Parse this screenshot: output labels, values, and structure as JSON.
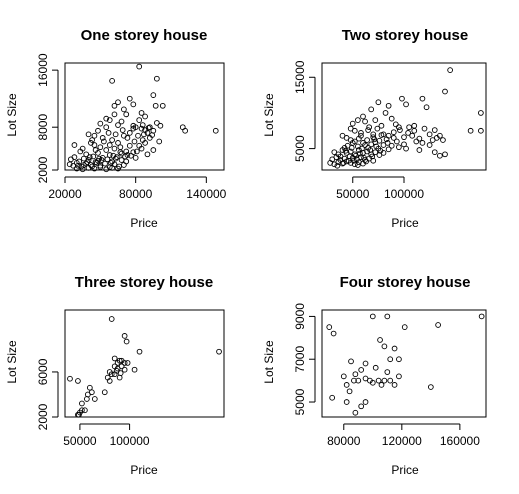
{
  "chart_data": [
    {
      "type": "scatter",
      "title": "One storey house",
      "xlabel": "Price",
      "ylabel": "Lot Size",
      "xlim": [
        20000,
        155000
      ],
      "ylim": [
        2000,
        17000
      ],
      "xticks": [
        20000,
        80000,
        140000
      ],
      "yticks": [
        2000,
        8000,
        16000
      ],
      "points": [
        [
          60000,
          14500
        ],
        [
          83000,
          16500
        ],
        [
          98000,
          14800
        ],
        [
          120000,
          8000
        ],
        [
          122000,
          7500
        ],
        [
          148000,
          7500
        ],
        [
          95000,
          12500
        ],
        [
          97000,
          11000
        ],
        [
          103000,
          11000
        ],
        [
          75000,
          12000
        ],
        [
          78000,
          11200
        ],
        [
          62000,
          11000
        ],
        [
          65000,
          11500
        ],
        [
          70000,
          10500
        ],
        [
          85000,
          10000
        ],
        [
          88000,
          9500
        ],
        [
          72000,
          9800
        ],
        [
          55000,
          9200
        ],
        [
          58000,
          9000
        ],
        [
          62000,
          9800
        ],
        [
          50000,
          8500
        ],
        [
          55000,
          8000
        ],
        [
          65000,
          8300
        ],
        [
          68000,
          8800
        ],
        [
          78000,
          8200
        ],
        [
          80000,
          8000
        ],
        [
          85000,
          7800
        ],
        [
          88000,
          7600
        ],
        [
          90000,
          7200
        ],
        [
          92000,
          8000
        ],
        [
          95000,
          7500
        ],
        [
          98000,
          8600
        ],
        [
          40000,
          7000
        ],
        [
          45000,
          6800
        ],
        [
          48000,
          7500
        ],
        [
          52000,
          6500
        ],
        [
          60000,
          6200
        ],
        [
          63000,
          7000
        ],
        [
          70000,
          6800
        ],
        [
          73000,
          6500
        ],
        [
          75000,
          7200
        ],
        [
          82000,
          6800
        ],
        [
          86000,
          6200
        ],
        [
          88000,
          5800
        ],
        [
          100000,
          6000
        ],
        [
          28000,
          5500
        ],
        [
          35000,
          5000
        ],
        [
          42000,
          5800
        ],
        [
          45000,
          5500
        ],
        [
          50000,
          5200
        ],
        [
          55000,
          4800
        ],
        [
          58000,
          5500
        ],
        [
          62000,
          5000
        ],
        [
          67000,
          5200
        ],
        [
          72000,
          4600
        ],
        [
          78000,
          4500
        ],
        [
          85000,
          5000
        ],
        [
          90000,
          4200
        ],
        [
          95000,
          4800
        ],
        [
          25000,
          3500
        ],
        [
          28000,
          3800
        ],
        [
          32000,
          3200
        ],
        [
          36000,
          3600
        ],
        [
          40000,
          3400
        ],
        [
          44000,
          3900
        ],
        [
          48000,
          3300
        ],
        [
          52000,
          3700
        ],
        [
          56000,
          3500
        ],
        [
          60000,
          3200
        ],
        [
          64000,
          3800
        ],
        [
          68000,
          3400
        ],
        [
          72000,
          3200
        ],
        [
          76000,
          4000
        ],
        [
          80000,
          3700
        ],
        [
          24000,
          2800
        ],
        [
          27000,
          2600
        ],
        [
          30000,
          3000
        ],
        [
          34000,
          2500
        ],
        [
          38000,
          2900
        ],
        [
          42000,
          2700
        ],
        [
          46000,
          3100
        ],
        [
          50000,
          2600
        ],
        [
          54000,
          2900
        ],
        [
          58000,
          2400
        ],
        [
          62000,
          2800
        ],
        [
          66000,
          2500
        ],
        [
          70000,
          2700
        ],
        [
          30000,
          2200
        ],
        [
          35000,
          2100
        ],
        [
          40000,
          2300
        ],
        [
          45000,
          2200
        ],
        [
          50000,
          2400
        ],
        [
          55000,
          2100
        ],
        [
          60000,
          2300
        ],
        [
          65000,
          2200
        ],
        [
          38000,
          4200
        ],
        [
          48000,
          4400
        ],
        [
          58000,
          4100
        ],
        [
          68000,
          4300
        ],
        [
          33000,
          4600
        ],
        [
          53000,
          6000
        ],
        [
          43000,
          6200
        ],
        [
          78000,
          7800
        ],
        [
          83000,
          9000
        ],
        [
          92000,
          6500
        ],
        [
          65000,
          5800
        ],
        [
          57000,
          7200
        ],
        [
          47000,
          3000
        ],
        [
          43000,
          2500
        ],
        [
          51000,
          3400
        ],
        [
          59000,
          3000
        ],
        [
          63000,
          3600
        ],
        [
          67000,
          4500
        ],
        [
          71000,
          3900
        ],
        [
          75000,
          5400
        ],
        [
          79000,
          6000
        ],
        [
          83000,
          5400
        ],
        [
          87000,
          7000
        ],
        [
          91000,
          7900
        ],
        [
          101000,
          8200
        ],
        [
          36000,
          2700
        ],
        [
          41000,
          3800
        ],
        [
          46000,
          4800
        ],
        [
          31000,
          2600
        ],
        [
          39000,
          3100
        ],
        [
          49000,
          3600
        ],
        [
          61000,
          4000
        ],
        [
          73000,
          4100
        ],
        [
          81000,
          4600
        ],
        [
          86000,
          8300
        ],
        [
          94000,
          6900
        ],
        [
          69000,
          7600
        ]
      ]
    },
    {
      "type": "scatter",
      "title": "Two storey house",
      "xlabel": "Price",
      "ylabel": "Lot Size",
      "xlim": [
        20000,
        180000
      ],
      "ylim": [
        2000,
        17000
      ],
      "xticks": [
        50000,
        100000
      ],
      "yticks": [
        5000,
        15000
      ],
      "points": [
        [
          145000,
          16000
        ],
        [
          140000,
          13000
        ],
        [
          175000,
          10000
        ],
        [
          175000,
          7500
        ],
        [
          165000,
          7500
        ],
        [
          98000,
          12000
        ],
        [
          102000,
          11200
        ],
        [
          118000,
          12000
        ],
        [
          122000,
          10800
        ],
        [
          85000,
          11000
        ],
        [
          75000,
          11500
        ],
        [
          68000,
          10500
        ],
        [
          60000,
          9500
        ],
        [
          82000,
          10000
        ],
        [
          88000,
          9200
        ],
        [
          72000,
          9000
        ],
        [
          62000,
          8800
        ],
        [
          55000,
          9000
        ],
        [
          50000,
          8500
        ],
        [
          78000,
          8200
        ],
        [
          92000,
          8400
        ],
        [
          95000,
          8000
        ],
        [
          105000,
          8000
        ],
        [
          110000,
          8200
        ],
        [
          120000,
          7800
        ],
        [
          125000,
          7000
        ],
        [
          130000,
          7600
        ],
        [
          132000,
          6500
        ],
        [
          135000,
          6800
        ],
        [
          138000,
          6200
        ],
        [
          48000,
          7800
        ],
        [
          52000,
          7500
        ],
        [
          58000,
          7200
        ],
        [
          65000,
          7600
        ],
        [
          70000,
          7000
        ],
        [
          80000,
          7000
        ],
        [
          85000,
          6800
        ],
        [
          90000,
          6500
        ],
        [
          100000,
          6600
        ],
        [
          108000,
          6800
        ],
        [
          112000,
          6000
        ],
        [
          118000,
          5800
        ],
        [
          125000,
          5500
        ],
        [
          128000,
          6200
        ],
        [
          40000,
          6800
        ],
        [
          44000,
          6500
        ],
        [
          48000,
          6200
        ],
        [
          52000,
          6000
        ],
        [
          56000,
          6400
        ],
        [
          60000,
          5800
        ],
        [
          64000,
          6200
        ],
        [
          68000,
          5600
        ],
        [
          72000,
          5900
        ],
        [
          76000,
          6100
        ],
        [
          80000,
          5500
        ],
        [
          84000,
          5800
        ],
        [
          88000,
          5400
        ],
        [
          95000,
          5200
        ],
        [
          102000,
          5000
        ],
        [
          115000,
          4800
        ],
        [
          130000,
          4500
        ],
        [
          135000,
          4000
        ],
        [
          140000,
          4200
        ],
        [
          32000,
          4500
        ],
        [
          36000,
          4200
        ],
        [
          40000,
          4800
        ],
        [
          44000,
          4400
        ],
        [
          48000,
          4600
        ],
        [
          52000,
          4200
        ],
        [
          56000,
          4800
        ],
        [
          60000,
          4400
        ],
        [
          64000,
          4600
        ],
        [
          68000,
          4200
        ],
        [
          72000,
          4500
        ],
        [
          76000,
          4100
        ],
        [
          80000,
          4400
        ],
        [
          30000,
          3500
        ],
        [
          34000,
          3800
        ],
        [
          38000,
          3400
        ],
        [
          42000,
          3600
        ],
        [
          46000,
          3300
        ],
        [
          50000,
          3700
        ],
        [
          54000,
          3500
        ],
        [
          58000,
          3800
        ],
        [
          62000,
          3400
        ],
        [
          66000,
          3600
        ],
        [
          70000,
          3300
        ],
        [
          28000,
          3000
        ],
        [
          32000,
          2800
        ],
        [
          36000,
          3100
        ],
        [
          40000,
          2900
        ],
        [
          44000,
          3200
        ],
        [
          48000,
          3000
        ],
        [
          52000,
          2800
        ],
        [
          56000,
          3100
        ],
        [
          60000,
          2900
        ],
        [
          45000,
          5400
        ],
        [
          55000,
          5300
        ],
        [
          65000,
          5100
        ],
        [
          75000,
          5000
        ],
        [
          85000,
          4900
        ],
        [
          50000,
          5800
        ],
        [
          62000,
          5500
        ],
        [
          70000,
          6600
        ],
        [
          78000,
          6900
        ],
        [
          42000,
          5100
        ],
        [
          47000,
          3900
        ],
        [
          53000,
          4000
        ],
        [
          57000,
          4300
        ],
        [
          61000,
          3700
        ],
        [
          67000,
          4800
        ],
        [
          73000,
          5300
        ],
        [
          90000,
          7300
        ],
        [
          96000,
          7600
        ],
        [
          104000,
          7200
        ],
        [
          58000,
          6800
        ],
        [
          66000,
          8000
        ],
        [
          74000,
          7800
        ],
        [
          38000,
          3900
        ],
        [
          43000,
          4700
        ],
        [
          49000,
          5100
        ],
        [
          59000,
          5000
        ],
        [
          63000,
          3200
        ],
        [
          69000,
          3900
        ],
        [
          77000,
          4700
        ],
        [
          83000,
          6300
        ],
        [
          93000,
          6000
        ],
        [
          100000,
          5600
        ],
        [
          110000,
          7500
        ],
        [
          115000,
          6400
        ],
        [
          35000,
          2600
        ],
        [
          41000,
          3000
        ],
        [
          51000,
          3300
        ],
        [
          55000,
          2700
        ],
        [
          71000,
          6300
        ]
      ]
    },
    {
      "type": "scatter",
      "title": "Three storey house",
      "xlabel": "Price",
      "ylabel": "Lot Size",
      "xlim": [
        35000,
        195000
      ],
      "ylim": [
        2000,
        11500
      ],
      "xticks": [
        50000,
        100000
      ],
      "yticks": [
        2000,
        6000
      ],
      "points": [
        [
          82000,
          10700
        ],
        [
          95000,
          9200
        ],
        [
          97000,
          8700
        ],
        [
          190000,
          7800
        ],
        [
          110000,
          7800
        ],
        [
          85000,
          7200
        ],
        [
          88000,
          6800
        ],
        [
          90000,
          7000
        ],
        [
          92000,
          7000
        ],
        [
          95000,
          6800
        ],
        [
          98000,
          6800
        ],
        [
          85000,
          6500
        ],
        [
          88000,
          6300
        ],
        [
          92000,
          6500
        ],
        [
          95000,
          6200
        ],
        [
          80000,
          6000
        ],
        [
          82000,
          5800
        ],
        [
          85000,
          5800
        ],
        [
          78000,
          5500
        ],
        [
          80000,
          5200
        ],
        [
          105000,
          6200
        ],
        [
          90000,
          5500
        ],
        [
          40000,
          5400
        ],
        [
          48000,
          5200
        ],
        [
          60000,
          4600
        ],
        [
          62000,
          4200
        ],
        [
          57000,
          3600
        ],
        [
          58000,
          4000
        ],
        [
          52000,
          3200
        ],
        [
          55000,
          2600
        ],
        [
          49000,
          2200
        ],
        [
          50000,
          2400
        ],
        [
          52000,
          2600
        ],
        [
          48000,
          2200
        ],
        [
          75000,
          4200
        ],
        [
          65000,
          3600
        ],
        [
          87000,
          6100
        ],
        [
          91000,
          5900
        ]
      ]
    },
    {
      "type": "scatter",
      "title": "Four storey house",
      "xlabel": "Price",
      "ylabel": "Lot Size",
      "xlim": [
        65000,
        178000
      ],
      "ylim": [
        4300,
        9300
      ],
      "xticks": [
        80000,
        120000,
        160000
      ],
      "yticks": [
        5000,
        7000,
        9000
      ],
      "points": [
        [
          100000,
          9000
        ],
        [
          110000,
          9000
        ],
        [
          175000,
          9000
        ],
        [
          145000,
          8600
        ],
        [
          122000,
          8500
        ],
        [
          70000,
          8500
        ],
        [
          73000,
          8200
        ],
        [
          105000,
          7900
        ],
        [
          108000,
          7600
        ],
        [
          115000,
          7500
        ],
        [
          112000,
          7000
        ],
        [
          118000,
          7000
        ],
        [
          85000,
          6900
        ],
        [
          95000,
          6800
        ],
        [
          102000,
          6600
        ],
        [
          80000,
          6200
        ],
        [
          88000,
          6300
        ],
        [
          92000,
          6500
        ],
        [
          98000,
          6000
        ],
        [
          104000,
          6000
        ],
        [
          108000,
          6000
        ],
        [
          112000,
          6000
        ],
        [
          115000,
          5800
        ],
        [
          118000,
          6200
        ],
        [
          82000,
          5800
        ],
        [
          84000,
          5500
        ],
        [
          87000,
          6000
        ],
        [
          90000,
          6000
        ],
        [
          95000,
          6100
        ],
        [
          140000,
          5700
        ],
        [
          72000,
          5200
        ],
        [
          82000,
          5000
        ],
        [
          88000,
          4500
        ],
        [
          92000,
          4800
        ],
        [
          95000,
          5000
        ],
        [
          100000,
          5900
        ],
        [
          106000,
          5800
        ],
        [
          110000,
          6400
        ]
      ]
    }
  ]
}
